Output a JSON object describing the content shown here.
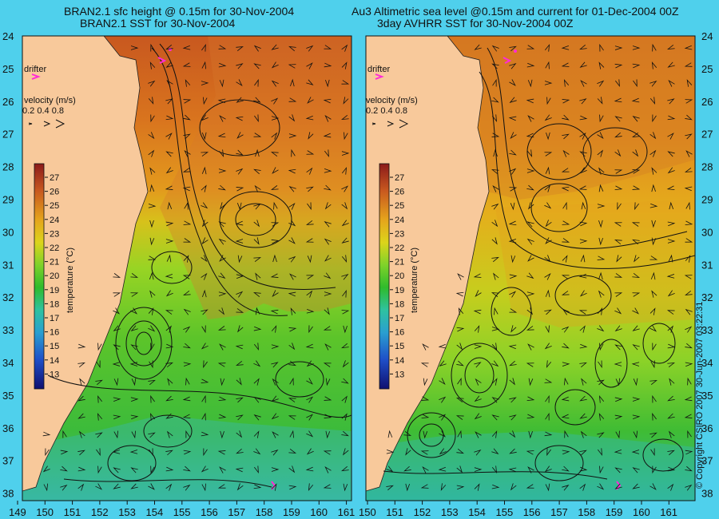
{
  "titles": {
    "left_line1": "BRAN2.1 sfc height @ 0.15m for 30-Nov-2004",
    "left_line2": "BRAN2.1 SST for 30-Nov-2004",
    "right_line1": "Au3 Altimetric sea level  @0.15m and current for 01-Dec-2004 00Z",
    "right_line2": "3day AVHRR SST for 30-Nov-2004 00Z"
  },
  "axes": {
    "lat_labels": [
      "24",
      "25",
      "26",
      "27",
      "28",
      "29",
      "30",
      "31",
      "32",
      "33",
      "34",
      "35",
      "36",
      "37",
      "38"
    ],
    "lon_labels": [
      "149",
      "150",
      "151",
      "152",
      "153",
      "154",
      "155",
      "156",
      "157",
      "158",
      "159",
      "160",
      "161"
    ],
    "lon_labels_right": [
      "150",
      "151",
      "152",
      "153",
      "154",
      "155",
      "156",
      "157",
      "158",
      "159",
      "160",
      "161"
    ]
  },
  "legend": {
    "drifter_label": "drifter",
    "velocity_label": "velocity (m/s)",
    "velocity_scale": "0.2 0.4 0.8",
    "colorbar_title": "temperature (°C)",
    "colorbar_ticks": [
      "27",
      "26",
      "25",
      "24",
      "23",
      "22",
      "21",
      "20",
      "19",
      "18",
      "17",
      "16",
      "15",
      "14",
      "13"
    ]
  },
  "copyright": "© Copyright CSIRO 2007   30-Jun-2007 03:22:31",
  "colors": {
    "background": "#4fd0ec",
    "land": "#f8c99b",
    "warm": "#c8581f",
    "mid": "#e0a21c",
    "cool": "#4cbf2b",
    "cold": "#2fb0b3",
    "drifter": "#ff2bd6"
  }
}
